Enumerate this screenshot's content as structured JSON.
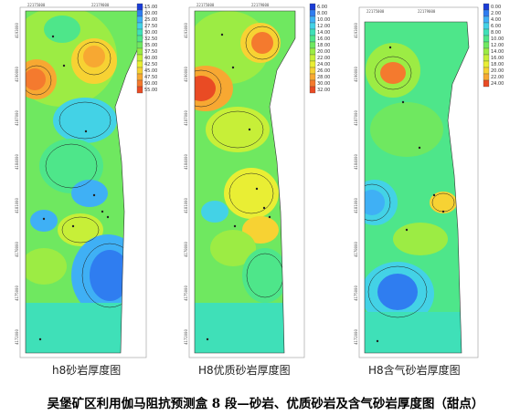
{
  "main_title": "吴堡矿区利用伽马阻抗预测盒 8 段—砂岩、优质砂岩及含气砂岩厚度图（甜点）",
  "chart_data": [
    {
      "type": "heatmap",
      "caption": "h8砂岩厚度图",
      "legend_values": [
        "15.00",
        "20.00",
        "25.00",
        "27.50",
        "30.00",
        "32.50",
        "35.00",
        "37.50",
        "40.00",
        "42.50",
        "45.00",
        "47.50",
        "50.00",
        "55.00"
      ],
      "legend_colors": [
        "#1a3cd6",
        "#2f7df0",
        "#3fb0f5",
        "#43d2e6",
        "#3fe0b8",
        "#4ee68a",
        "#6fe860",
        "#9cec44",
        "#c7ef38",
        "#e9ee34",
        "#f7d233",
        "#f7a832",
        "#f47a2e",
        "#e94b24"
      ],
      "x_ticks": [
        "22175000",
        "22179000"
      ],
      "y_ticks": [
        "4193000",
        "4190000",
        "4187000",
        "4184000",
        "4181000",
        "4178000",
        "4175000",
        "4172000"
      ]
    },
    {
      "type": "heatmap",
      "caption": "H8优质砂岩厚度图",
      "legend_values": [
        "6.00",
        "8.00",
        "10.00",
        "12.00",
        "14.00",
        "16.00",
        "18.00",
        "20.00",
        "22.00",
        "24.00",
        "26.00",
        "28.00",
        "30.00",
        "32.00"
      ],
      "legend_colors": [
        "#1a3cd6",
        "#2f7df0",
        "#3fb0f5",
        "#43d2e6",
        "#3fe0b8",
        "#4ee68a",
        "#6fe860",
        "#9cec44",
        "#c7ef38",
        "#e9ee34",
        "#f7d233",
        "#f7a832",
        "#f47a2e",
        "#e94b24"
      ],
      "x_ticks": [
        "22175000",
        "22179000"
      ],
      "y_ticks": [
        "4193000",
        "4190000",
        "4187000",
        "4184000",
        "4181000",
        "4178000",
        "4175000",
        "4172000"
      ]
    },
    {
      "type": "heatmap",
      "caption": "H8含气砂岩厚度图",
      "legend_values": [
        "0.00",
        "2.00",
        "4.00",
        "6.00",
        "8.00",
        "10.00",
        "12.00",
        "14.00",
        "16.00",
        "18.00",
        "20.00",
        "22.00",
        "24.00"
      ],
      "legend_colors": [
        "#1a3cd6",
        "#2f7df0",
        "#3fb0f5",
        "#43d2e6",
        "#3fe0b8",
        "#4ee68a",
        "#6fe860",
        "#9cec44",
        "#c7ef38",
        "#e9ee34",
        "#f7d233",
        "#f7a832",
        "#e94b24"
      ],
      "x_ticks": [
        "22175000",
        "22179000"
      ],
      "y_ticks": [
        "4193000",
        "4190000",
        "4187000",
        "4184000",
        "4181000",
        "4178000",
        "4175000",
        "4172000"
      ]
    }
  ]
}
